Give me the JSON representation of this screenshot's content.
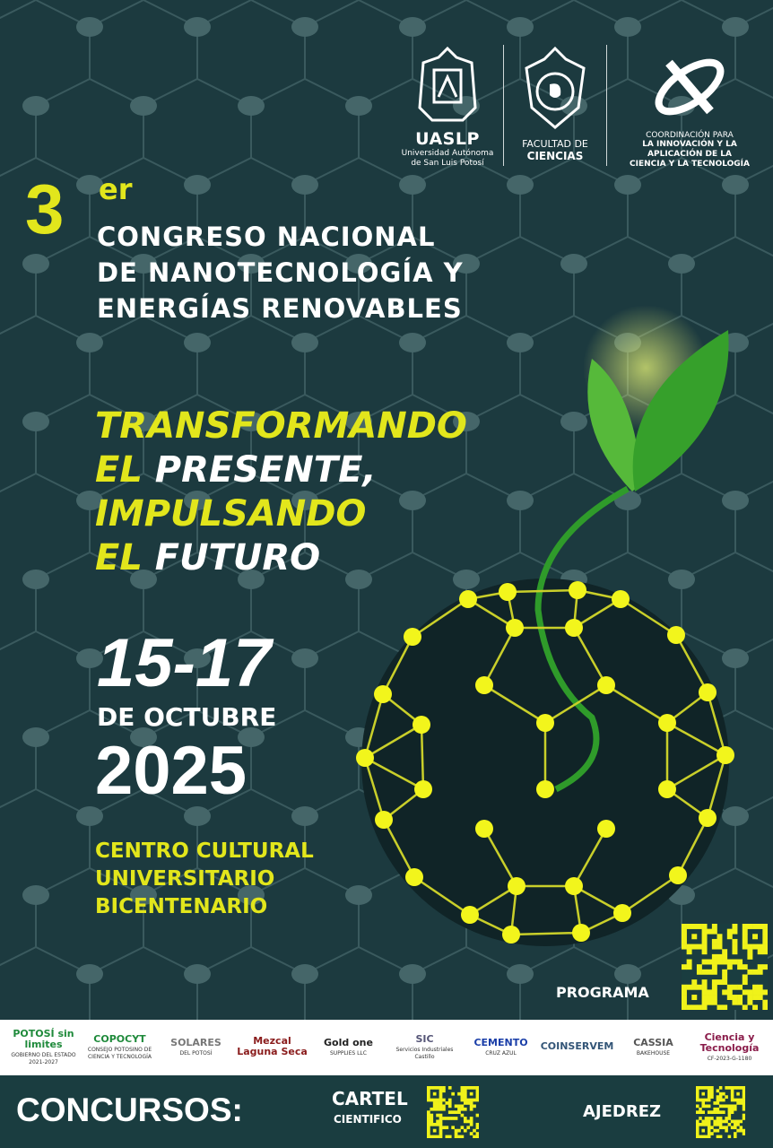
{
  "logos": {
    "uaslp": {
      "name": "UASLP",
      "line1": "Universidad Autónoma",
      "line2": "de San Luis Potosí"
    },
    "facultad": {
      "line1": "FACULTAD DE",
      "line2": "CIENCIAS"
    },
    "coordinacion": {
      "line1": "COORDINACIÓN PARA",
      "line2": "LA INNOVACIÓN Y LA",
      "line3": "APLICACIÓN DE LA",
      "line4": "CIENCIA Y LA TECNOLOGÍA"
    }
  },
  "event": {
    "number": "3",
    "ordinal": "er",
    "title": [
      "CONGRESO NACIONAL",
      "DE NANOTECNOLOGÍA Y",
      "ENERGÍAS RENOVABLES"
    ],
    "slogan": [
      {
        "a": "TRANSFORMANDO",
        "b": ""
      },
      {
        "a": "EL ",
        "b": "PRESENTE,"
      },
      {
        "a": "IMPULSANDO",
        "b": ""
      },
      {
        "a": "EL ",
        "b": "FUTURO"
      }
    ],
    "dates": "15-17",
    "month": "DE OCTUBRE",
    "year": "2025",
    "venue": [
      "CENTRO CULTURAL",
      "UNIVERSITARIO",
      "BICENTENARIO"
    ]
  },
  "programa_label": "PROGRAMA",
  "sponsors": [
    {
      "name": "POTOSÍ sin limites",
      "sub": "GOBIERNO DEL ESTADO 2021-2027"
    },
    {
      "name": "COPOCYT",
      "sub": "CONSEJO POTOSINO DE CIENCIA Y TECNOLOGÍA"
    },
    {
      "name": "SOLARES",
      "sub": "DEL POTOSÍ"
    },
    {
      "name": "Mezcal Laguna Seca",
      "sub": ""
    },
    {
      "name": "Gold one",
      "sub": "SUPPLIES LLC"
    },
    {
      "name": "SIC",
      "sub": "Servicios Industriales Castillo"
    },
    {
      "name": "CEMENTO",
      "sub": "CRUZ AZUL"
    },
    {
      "name": "COINSERVEM",
      "sub": ""
    },
    {
      "name": "CASSIA",
      "sub": "BAKEHOUSE"
    },
    {
      "name": "Ciencia y Tecnología",
      "sub": "CF-2023-G-1180"
    }
  ],
  "bottom": {
    "concursos": "CONCURSOS:",
    "cartel": "CARTEL",
    "cientifico": "CIENTIFICO",
    "ajedrez": "AJEDREZ"
  },
  "colors": {
    "background": "#1c3a3f",
    "accent": "#e2e61c",
    "leaf": "#3fa52a"
  }
}
